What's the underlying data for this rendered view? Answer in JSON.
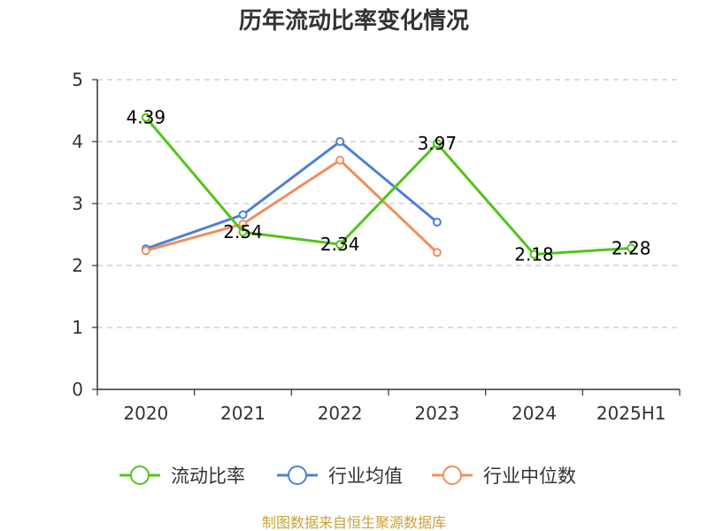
{
  "chart_data": {
    "type": "line",
    "title": "历年流动比率变化情况",
    "categories": [
      "2020",
      "2021",
      "2022",
      "2023",
      "2024",
      "2025H1"
    ],
    "ylim": [
      0,
      5
    ],
    "yticks": [
      0,
      1,
      2,
      3,
      4,
      5
    ],
    "grid": true,
    "legend_position": "bottom",
    "series": [
      {
        "name": "流动比率",
        "color": "#52c41a",
        "values": [
          4.39,
          2.54,
          2.34,
          3.97,
          2.18,
          2.28
        ],
        "labels": [
          "4.39",
          "2.54",
          "2.34",
          "3.97",
          "2.18",
          "2.28"
        ]
      },
      {
        "name": "行业均值",
        "color": "#4e7fd6",
        "values": [
          2.27,
          2.82,
          4.0,
          2.7,
          null,
          null
        ]
      },
      {
        "name": "行业中位数",
        "color": "#f28e5a",
        "values": [
          2.24,
          2.67,
          3.7,
          2.21,
          null,
          null
        ]
      }
    ],
    "source": "制图数据来自恒生聚源数据库"
  }
}
